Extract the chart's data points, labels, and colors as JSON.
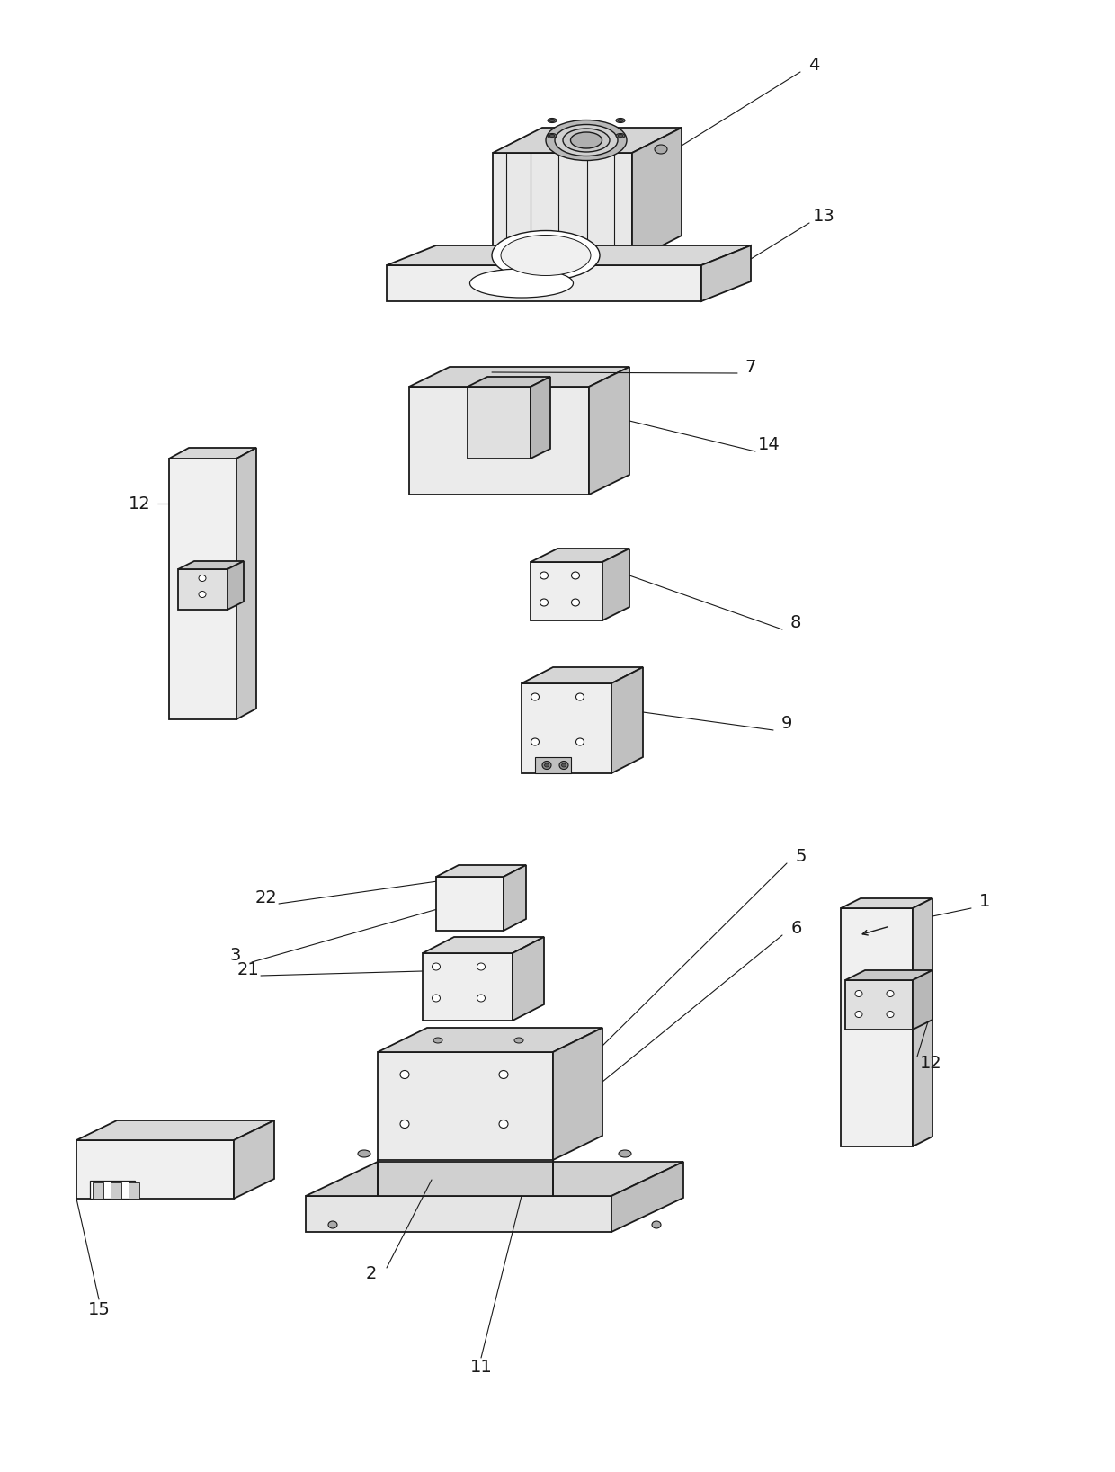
{
  "bg_color": "#ffffff",
  "lc": "#1a1a1a",
  "lw": 1.3,
  "figsize": [
    12.4,
    16.37
  ],
  "dpi": 100
}
